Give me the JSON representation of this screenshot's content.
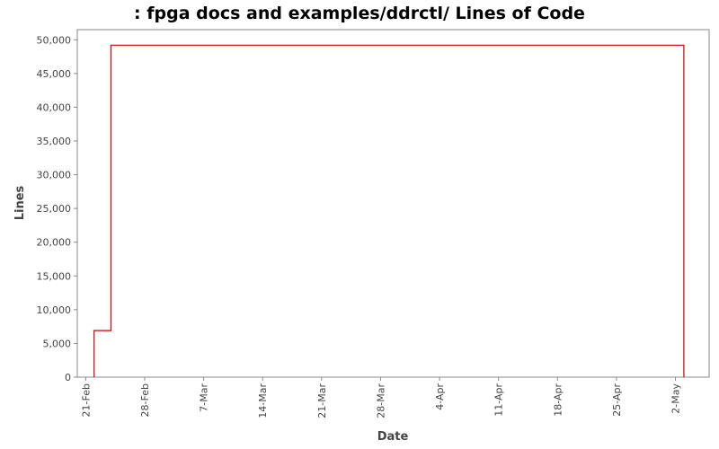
{
  "chart_data": {
    "type": "line",
    "title": ": fpga docs and examples/ddrctl/ Lines of Code",
    "xlabel": "Date",
    "ylabel": "Lines",
    "line_style": "step",
    "grid": false,
    "legend": "none",
    "colors": {
      "series": "#cc0000",
      "background": "#ffffff",
      "axis": "#888888"
    },
    "xlim": [
      "2011-02-20",
      "2011-05-06"
    ],
    "ylim": [
      0,
      51500
    ],
    "x_ticks": [
      {
        "date": "2011-02-21",
        "label": "21-Feb"
      },
      {
        "date": "2011-02-28",
        "label": "28-Feb"
      },
      {
        "date": "2011-03-07",
        "label": "7-Mar"
      },
      {
        "date": "2011-03-14",
        "label": "14-Mar"
      },
      {
        "date": "2011-03-21",
        "label": "21-Mar"
      },
      {
        "date": "2011-03-28",
        "label": "28-Mar"
      },
      {
        "date": "2011-04-04",
        "label": "4-Apr"
      },
      {
        "date": "2011-04-11",
        "label": "11-Apr"
      },
      {
        "date": "2011-04-18",
        "label": "18-Apr"
      },
      {
        "date": "2011-04-25",
        "label": "25-Apr"
      },
      {
        "date": "2011-05-02",
        "label": "2-May"
      }
    ],
    "y_ticks": [
      {
        "value": 0,
        "label": "0"
      },
      {
        "value": 5000,
        "label": "5,000"
      },
      {
        "value": 10000,
        "label": "10,000"
      },
      {
        "value": 15000,
        "label": "15,000"
      },
      {
        "value": 20000,
        "label": "20,000"
      },
      {
        "value": 25000,
        "label": "25,000"
      },
      {
        "value": 30000,
        "label": "30,000"
      },
      {
        "value": 35000,
        "label": "35,000"
      },
      {
        "value": 40000,
        "label": "40,000"
      },
      {
        "value": 45000,
        "label": "45,000"
      },
      {
        "value": 50000,
        "label": "50,000"
      }
    ],
    "series": [
      {
        "x": [
          "2011-02-22",
          "2011-02-22",
          "2011-02-24",
          "2011-02-24",
          "2011-05-03",
          "2011-05-03"
        ],
        "y": [
          0,
          6900,
          6900,
          49200,
          49200,
          0
        ]
      }
    ]
  }
}
